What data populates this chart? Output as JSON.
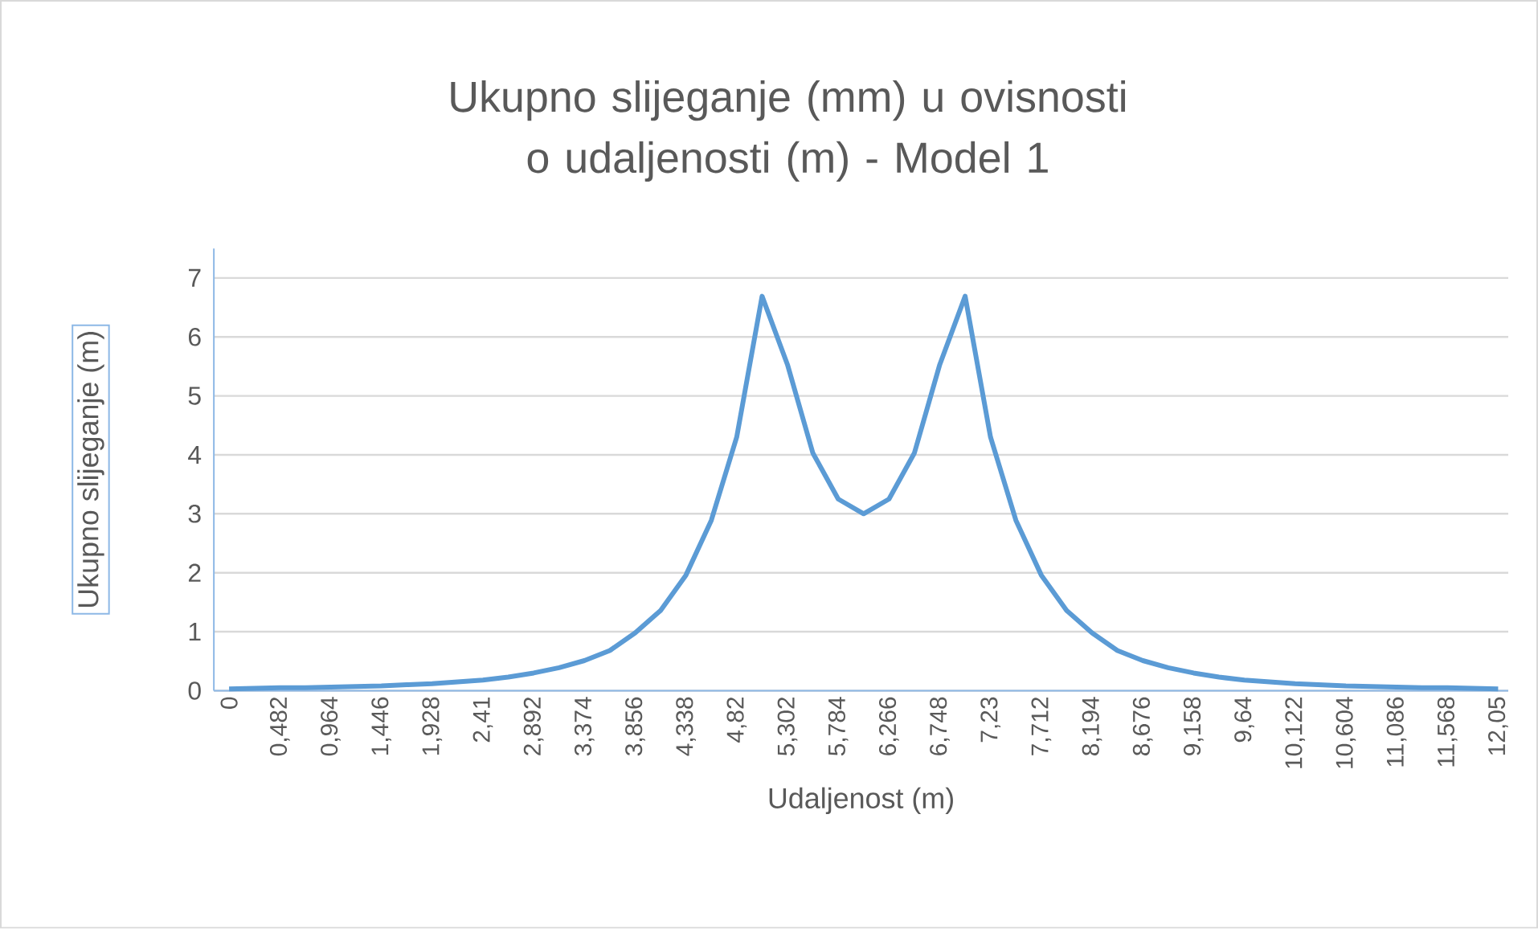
{
  "chart_data": {
    "type": "line",
    "title": "Ukupno slijeganje (mm) u ovisnosti o udaljenosti (m) - Model 1",
    "xlabel": "Udaljenost (m)",
    "ylabel": "Ukupno slijeganje (m)",
    "categories": [
      "0",
      null,
      "0,482",
      null,
      "0,964",
      null,
      "1,446",
      null,
      "1,928",
      null,
      "2,41",
      null,
      "2,892",
      null,
      "3,374",
      null,
      "3,856",
      null,
      "4,338",
      null,
      "4,82",
      null,
      "5,302",
      null,
      "5,784",
      null,
      "6,266",
      null,
      "6,748",
      null,
      "7,23",
      null,
      "7,712",
      null,
      "8,194",
      null,
      "8,676",
      null,
      "9,158",
      null,
      "9,64",
      null,
      "10,122",
      null,
      "10,604",
      null,
      "11,086",
      null,
      "11,568",
      null,
      "12,05"
    ],
    "series": [
      {
        "color": "#5b9bd5",
        "values": [
          0.03,
          0.04,
          0.05,
          0.05,
          0.06,
          0.07,
          0.08,
          0.1,
          0.12,
          0.15,
          0.18,
          0.23,
          0.3,
          0.39,
          0.51,
          0.68,
          0.98,
          1.36,
          1.96,
          2.89,
          4.3,
          6.69,
          5.53,
          4.03,
          3.25,
          3.0,
          3.25,
          4.03,
          5.53,
          6.69,
          4.3,
          2.89,
          1.96,
          1.36,
          0.98,
          0.68,
          0.51,
          0.39,
          0.3,
          0.23,
          0.18,
          0.15,
          0.12,
          0.1,
          0.08,
          0.07,
          0.06,
          0.05,
          0.05,
          0.04,
          0.03
        ]
      }
    ],
    "ylim": [
      0,
      7.5
    ],
    "yticks": [
      0,
      1,
      2,
      3,
      4,
      5,
      6,
      7
    ],
    "grid": "y",
    "marker": "none",
    "line_style": "solid"
  }
}
